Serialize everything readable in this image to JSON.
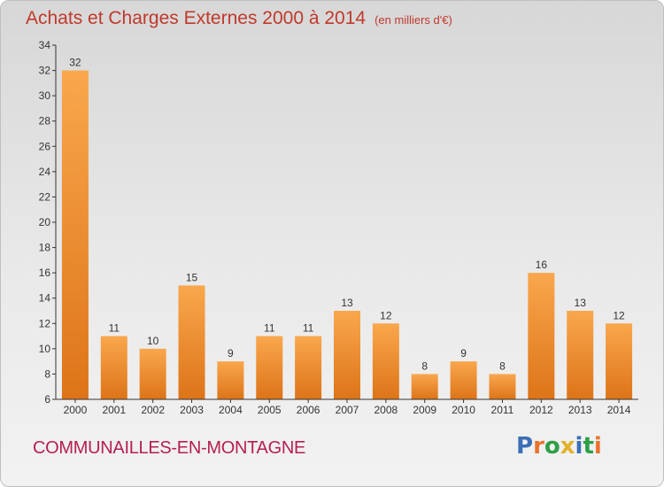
{
  "title": "Achats et Charges Externes 2000 à 2014",
  "unit_note": "(en milliers d'€)",
  "commune": "COMMUNAILLES-EN-MONTAGNE",
  "logo": {
    "text": "Proxiti",
    "colors": [
      "#3b6fb6",
      "#e8732d",
      "#2e9e47",
      "#e3b12a",
      "#3b6fb6",
      "#2e9e47",
      "#e8732d"
    ]
  },
  "colors": {
    "bar_light": "#f9a74d",
    "bar_dark": "#dd7418",
    "axis": "#333333",
    "title": "#c0392b"
  },
  "chart_data": {
    "type": "bar",
    "categories": [
      "2000",
      "2001",
      "2002",
      "2003",
      "2004",
      "2005",
      "2006",
      "2007",
      "2008",
      "2009",
      "2010",
      "2011",
      "2012",
      "2013",
      "2014"
    ],
    "values": [
      32,
      11,
      10,
      15,
      9,
      11,
      11,
      13,
      12,
      8,
      9,
      8,
      16,
      13,
      12
    ],
    "ylim": [
      6,
      34
    ],
    "yticks": [
      6,
      8,
      10,
      12,
      14,
      16,
      18,
      20,
      22,
      24,
      26,
      28,
      30,
      32,
      34
    ],
    "grid": false,
    "data_labels": true
  }
}
